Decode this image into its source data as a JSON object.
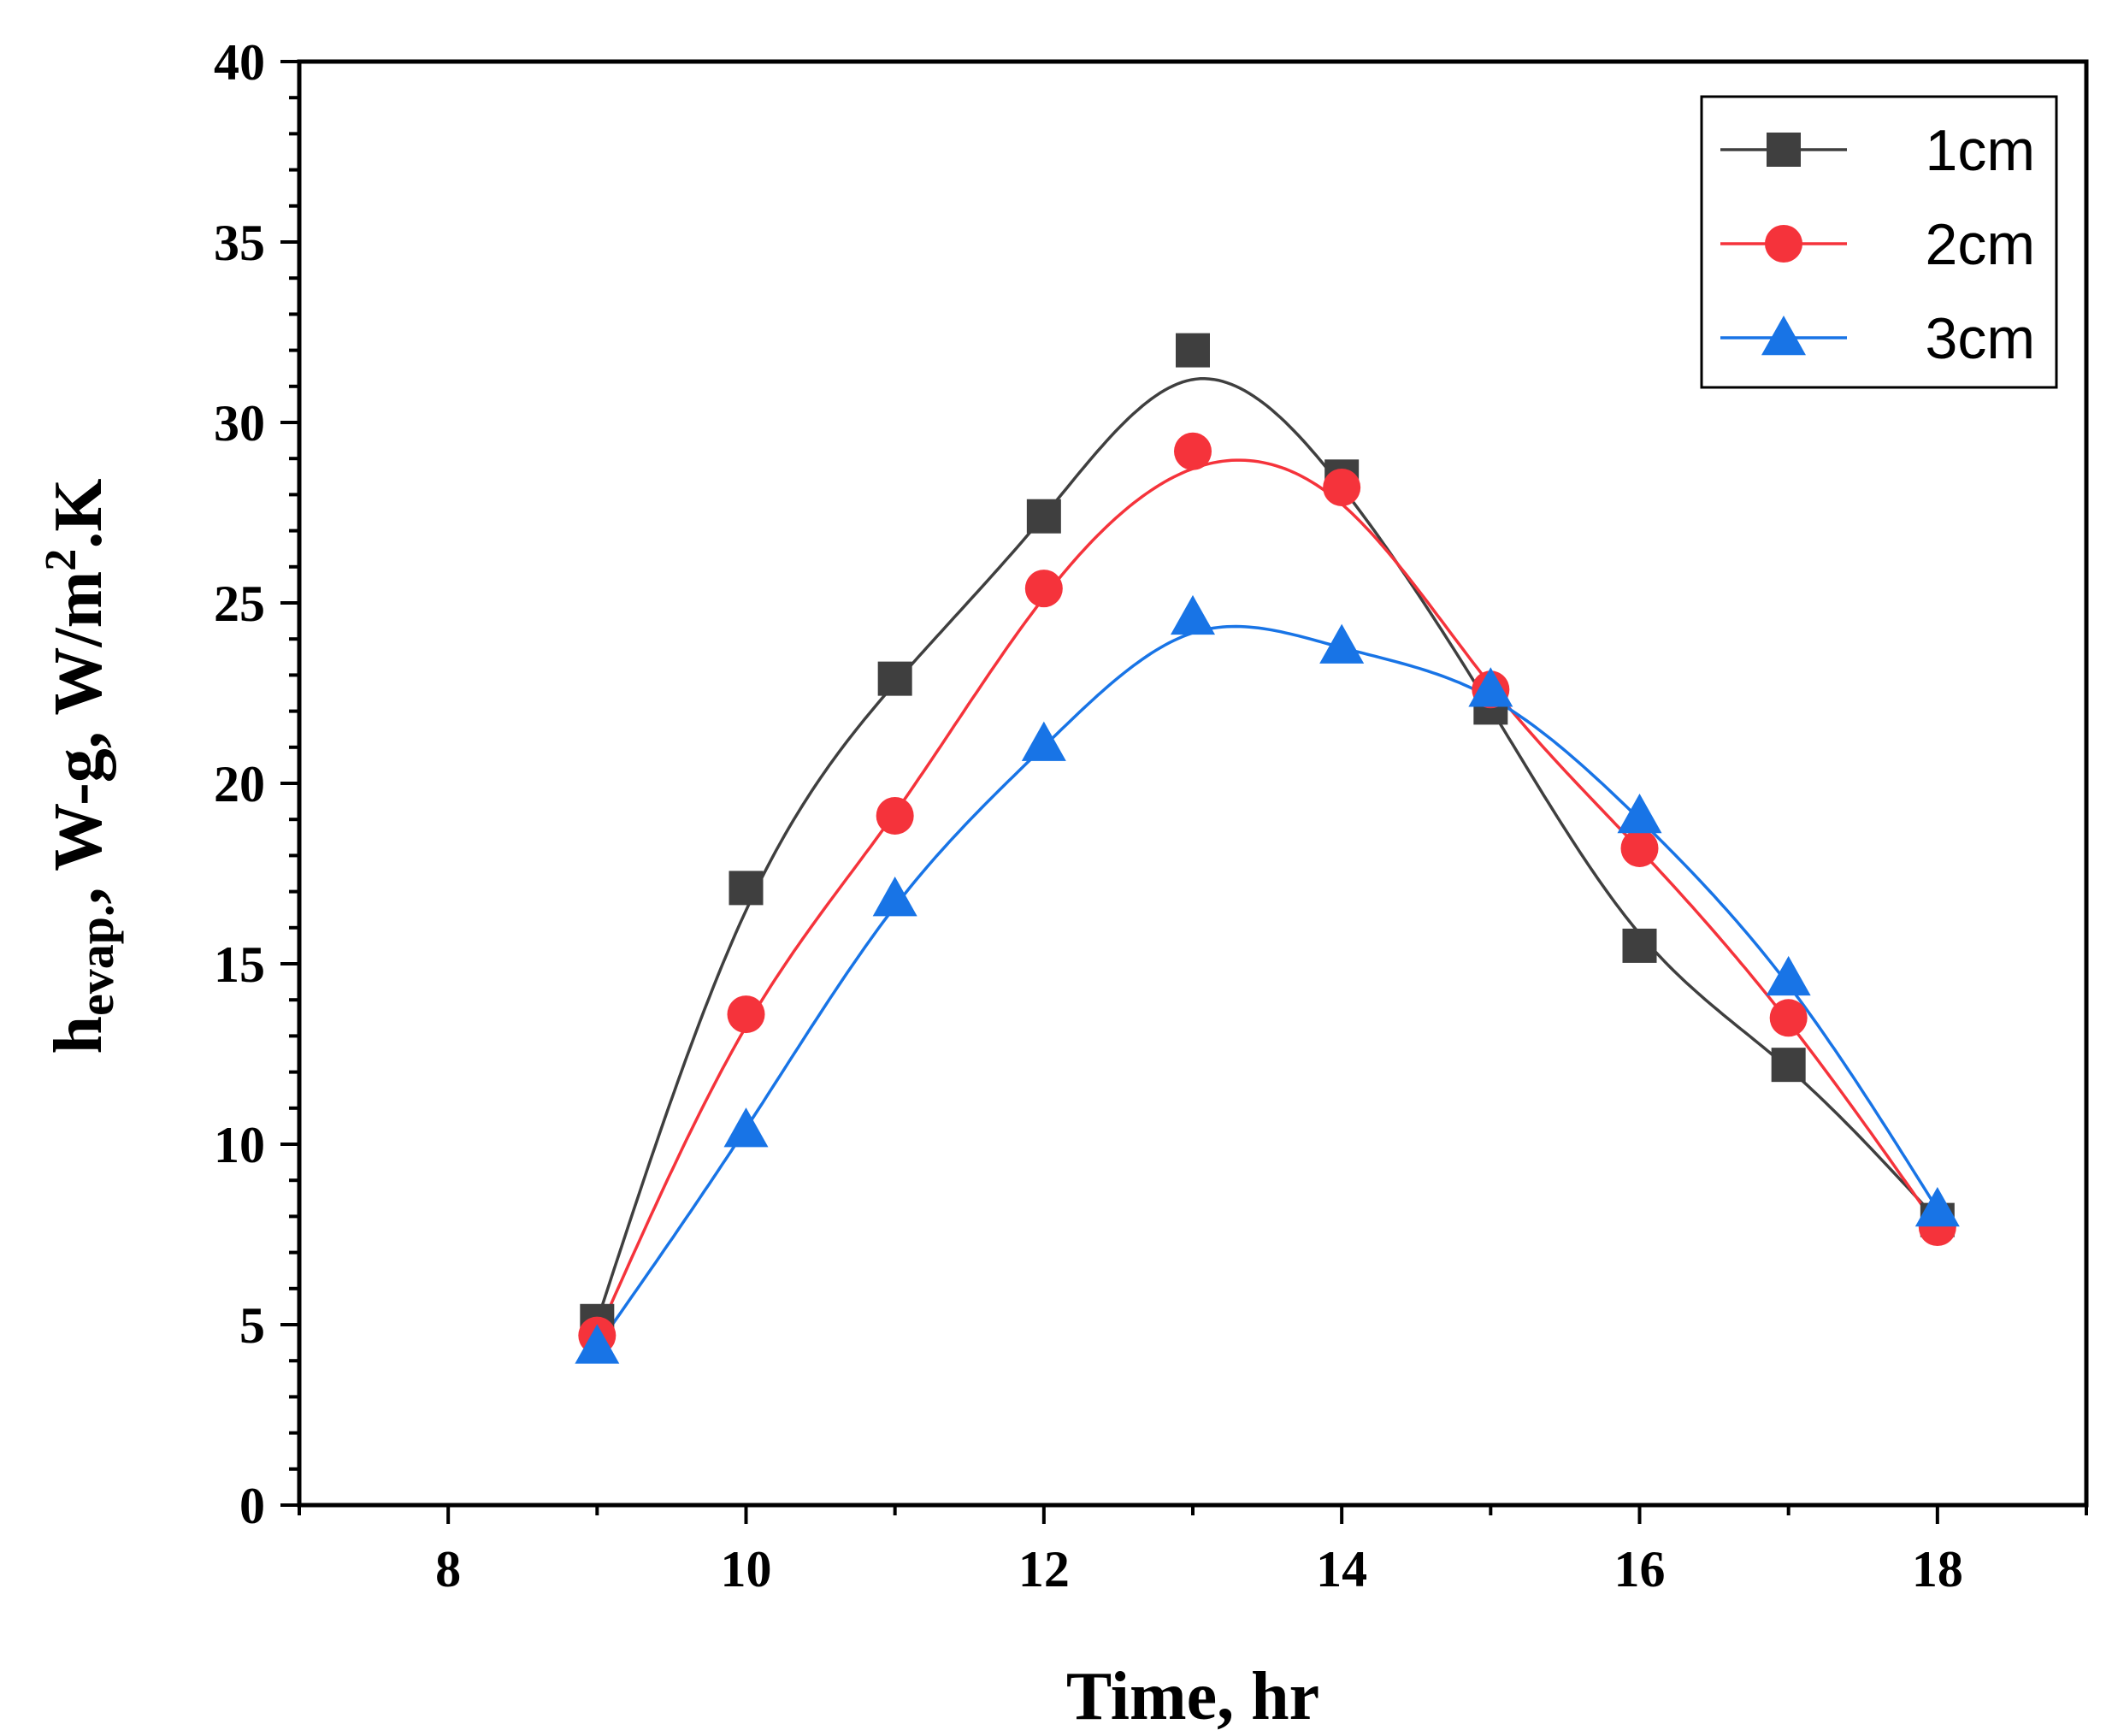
{
  "chart_data": {
    "type": "line",
    "title": "",
    "xlabel": "Time, hr",
    "ylabel": {
      "main": "h",
      "sub": "evap.",
      "rest": ", W-g, W/m",
      "sup": "2",
      "end": ".K"
    },
    "xlim": [
      7,
      19
    ],
    "ylim": [
      0,
      40
    ],
    "x_ticks": [
      8,
      10,
      12,
      14,
      16,
      18
    ],
    "y_ticks": [
      0,
      5,
      10,
      15,
      20,
      25,
      30,
      35,
      40
    ],
    "legend_position": "top-right",
    "series": [
      {
        "name": "1cm",
        "marker": "square",
        "color": "#3f3f3f",
        "x": [
          9,
          10,
          11,
          12,
          13,
          14,
          15,
          16,
          17,
          18
        ],
        "y": [
          5.1,
          17.1,
          22.9,
          27.4,
          32.0,
          28.5,
          22.1,
          15.5,
          12.2,
          7.9
        ]
      },
      {
        "name": "2cm",
        "marker": "circle",
        "color": "#f5333b",
        "x": [
          9,
          10,
          11,
          12,
          13,
          14,
          15,
          16,
          17,
          18
        ],
        "y": [
          4.7,
          13.6,
          19.1,
          25.4,
          29.2,
          28.2,
          22.6,
          18.2,
          13.5,
          7.7
        ]
      },
      {
        "name": "3cm",
        "marker": "triangle",
        "color": "#1874e6",
        "x": [
          9,
          10,
          11,
          12,
          13,
          14,
          15,
          16,
          17,
          18
        ],
        "y": [
          4.4,
          10.4,
          16.8,
          21.1,
          24.6,
          23.8,
          22.6,
          19.1,
          14.6,
          8.2
        ]
      }
    ]
  }
}
